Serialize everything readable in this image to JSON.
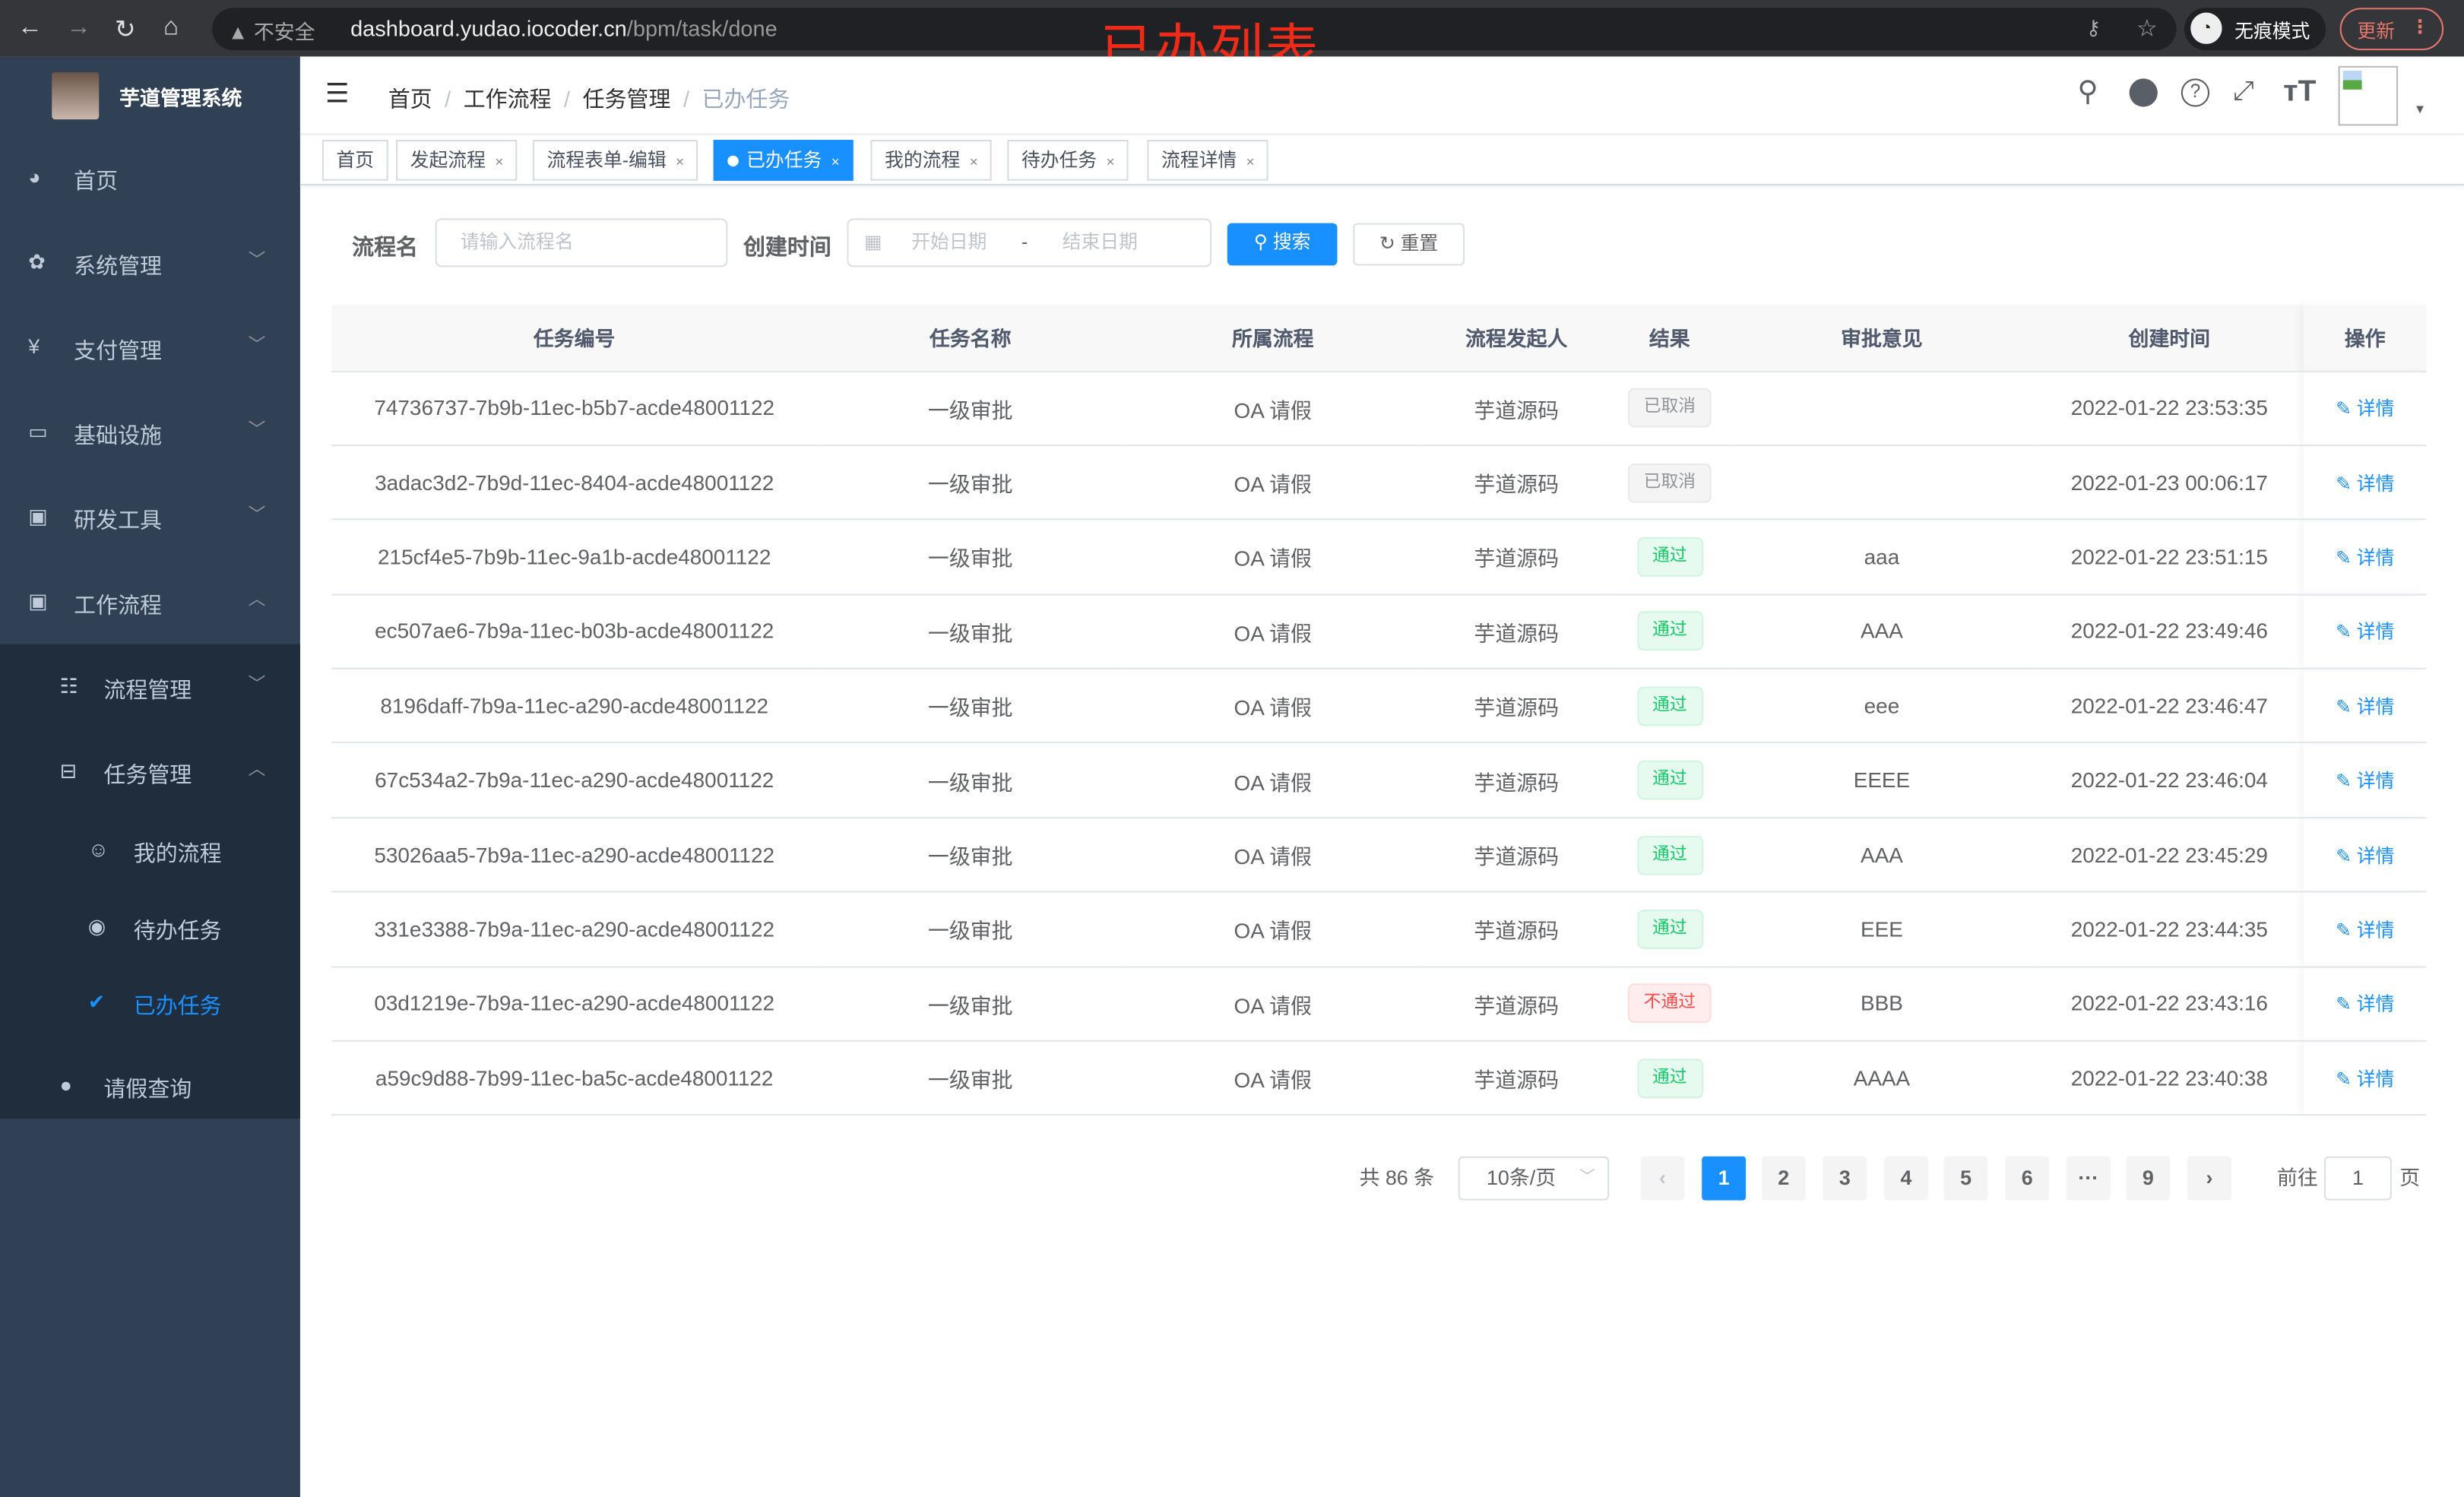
{
  "browser": {
    "security": "不安全",
    "url_host": "dashboard.yudao.iocoder.cn",
    "url_path": "/bpm/task/done",
    "incognito": "无痕模式",
    "update": "更新"
  },
  "overlay_title": "已办列表",
  "sidebar": {
    "title": "芋道管理系统",
    "items": [
      {
        "label": "首页",
        "icon": "dashboard-icon"
      },
      {
        "label": "系统管理",
        "icon": "gear-icon"
      },
      {
        "label": "支付管理",
        "icon": "yen-icon"
      },
      {
        "label": "基础设施",
        "icon": "monitor-icon"
      },
      {
        "label": "研发工具",
        "icon": "toolbox-icon"
      },
      {
        "label": "工作流程",
        "icon": "toolbox-icon"
      }
    ],
    "sub_items": [
      {
        "label": "流程管理",
        "icon": "list-icon"
      },
      {
        "label": "任务管理",
        "icon": "tree-icon"
      },
      {
        "label": "我的流程",
        "icon": "people-icon"
      },
      {
        "label": "待办任务",
        "icon": "eye-icon"
      },
      {
        "label": "已办任务",
        "icon": "done-icon"
      },
      {
        "label": "请假查询",
        "icon": "user-icon"
      }
    ]
  },
  "breadcrumb": [
    "首页",
    "工作流程",
    "任务管理",
    "已办任务"
  ],
  "tags": [
    "首页",
    "发起流程",
    "流程表单-编辑",
    "已办任务",
    "我的流程",
    "待办任务",
    "流程详情"
  ],
  "active_tag": "已办任务",
  "search": {
    "name_label": "流程名",
    "name_placeholder": "请输入流程名",
    "time_label": "创建时间",
    "start_placeholder": "开始日期",
    "range_sep": "-",
    "end_placeholder": "结束日期",
    "search_btn": "搜索",
    "reset_btn": "重置"
  },
  "table": {
    "headers": [
      "任务编号",
      "任务名称",
      "所属流程",
      "流程发起人",
      "结果",
      "审批意见",
      "创建时间",
      "操作"
    ],
    "op_label": "详情",
    "rows": [
      {
        "id": "74736737-7b9b-11ec-b5b7-acde48001122",
        "name": "一级审批",
        "flow": "OA 请假",
        "starter": "芋道源码",
        "result": "已取消",
        "status": "cancel",
        "opinion": "",
        "time": "2022-01-22 23:53:35"
      },
      {
        "id": "3adac3d2-7b9d-11ec-8404-acde48001122",
        "name": "一级审批",
        "flow": "OA 请假",
        "starter": "芋道源码",
        "result": "已取消",
        "status": "cancel",
        "opinion": "",
        "time": "2022-01-23 00:06:17"
      },
      {
        "id": "215cf4e5-7b9b-11ec-9a1b-acde48001122",
        "name": "一级审批",
        "flow": "OA 请假",
        "starter": "芋道源码",
        "result": "通过",
        "status": "pass",
        "opinion": "aaa",
        "time": "2022-01-22 23:51:15"
      },
      {
        "id": "ec507ae6-7b9a-11ec-b03b-acde48001122",
        "name": "一级审批",
        "flow": "OA 请假",
        "starter": "芋道源码",
        "result": "通过",
        "status": "pass",
        "opinion": "AAA",
        "time": "2022-01-22 23:49:46"
      },
      {
        "id": "8196daff-7b9a-11ec-a290-acde48001122",
        "name": "一级审批",
        "flow": "OA 请假",
        "starter": "芋道源码",
        "result": "通过",
        "status": "pass",
        "opinion": "eee",
        "time": "2022-01-22 23:46:47"
      },
      {
        "id": "67c534a2-7b9a-11ec-a290-acde48001122",
        "name": "一级审批",
        "flow": "OA 请假",
        "starter": "芋道源码",
        "result": "通过",
        "status": "pass",
        "opinion": "EEEE",
        "time": "2022-01-22 23:46:04"
      },
      {
        "id": "53026aa5-7b9a-11ec-a290-acde48001122",
        "name": "一级审批",
        "flow": "OA 请假",
        "starter": "芋道源码",
        "result": "通过",
        "status": "pass",
        "opinion": "AAA",
        "time": "2022-01-22 23:45:29"
      },
      {
        "id": "331e3388-7b9a-11ec-a290-acde48001122",
        "name": "一级审批",
        "flow": "OA 请假",
        "starter": "芋道源码",
        "result": "通过",
        "status": "pass",
        "opinion": "EEE",
        "time": "2022-01-22 23:44:35"
      },
      {
        "id": "03d1219e-7b9a-11ec-a290-acde48001122",
        "name": "一级审批",
        "flow": "OA 请假",
        "starter": "芋道源码",
        "result": "不通过",
        "status": "reject",
        "opinion": "BBB",
        "time": "2022-01-22 23:43:16"
      },
      {
        "id": "a59c9d88-7b99-11ec-ba5c-acde48001122",
        "name": "一级审批",
        "flow": "OA 请假",
        "starter": "芋道源码",
        "result": "通过",
        "status": "pass",
        "opinion": "AAAA",
        "time": "2022-01-22 23:40:38"
      }
    ]
  },
  "pagination": {
    "total": "共 86 条",
    "page_size": "10条/页",
    "pages": [
      "1",
      "2",
      "3",
      "4",
      "5",
      "6",
      "···",
      "9"
    ],
    "current": "1",
    "goto_label": "前往",
    "goto_value": "1",
    "page_suffix": "页"
  },
  "colors": {
    "primary": "#1890ff",
    "sidebar": "#304156",
    "pass": "#13ce66",
    "reject": "#ff4949",
    "cancel": "#909399"
  }
}
